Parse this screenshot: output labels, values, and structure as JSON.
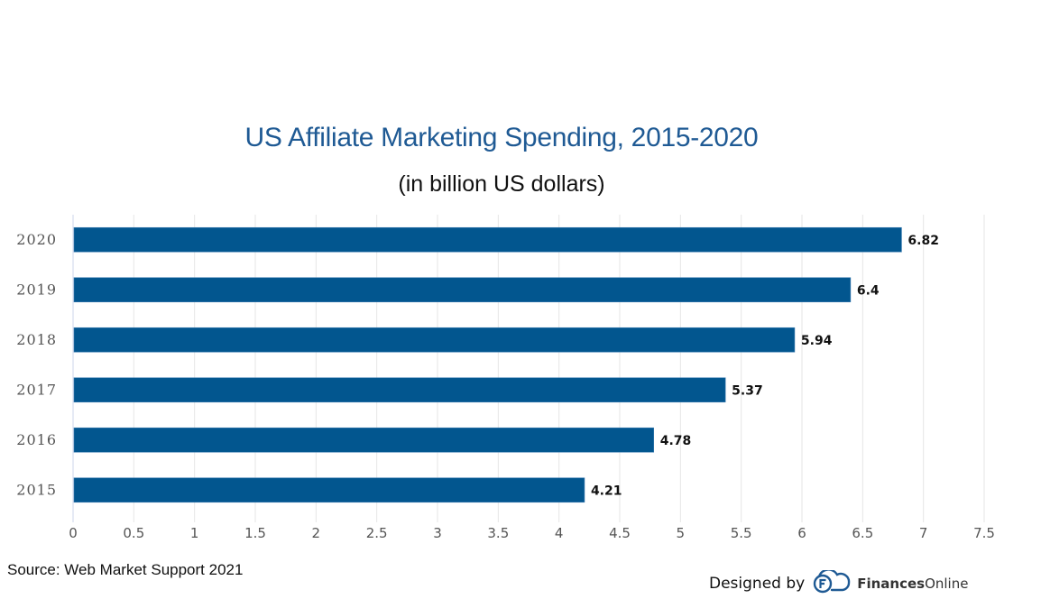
{
  "chart_data": {
    "type": "bar",
    "orientation": "horizontal",
    "title": "US Affiliate Marketing Spending, 2015-2020",
    "subtitle": "(in billion US dollars)",
    "categories": [
      "2020",
      "2019",
      "2018",
      "2017",
      "2016",
      "2015"
    ],
    "values": [
      6.82,
      6.4,
      5.94,
      5.37,
      4.78,
      4.21
    ],
    "data_labels": [
      "6.82",
      "6.4",
      "5.94",
      "5.37",
      "4.78",
      "4.21"
    ],
    "xlabel": "",
    "ylabel": "",
    "xlim": [
      0,
      7.5
    ],
    "x_ticks": [
      0,
      0.5,
      1,
      1.5,
      2,
      2.5,
      3,
      3.5,
      4,
      4.5,
      5,
      5.5,
      6,
      6.5,
      7,
      7.5
    ],
    "x_tick_labels": [
      "0",
      "0.5",
      "1",
      "1.5",
      "2",
      "2.5",
      "3",
      "3.5",
      "4",
      "4.5",
      "5",
      "5.5",
      "6",
      "6.5",
      "7",
      "7.5"
    ],
    "grid": "vertical",
    "legend": "none",
    "bar_color": "#02568f",
    "grid_color": "#e6e6e6",
    "axis_color": "#ccd6eb"
  },
  "footer": {
    "source": "Source: Web Market Support 2021",
    "credit_prefix": "Designed by",
    "brand_bold": "Finances",
    "brand_regular": "Online",
    "brand_icon": "financesonline-cloud-logo-icon",
    "brand_color": "#1f5a94"
  }
}
